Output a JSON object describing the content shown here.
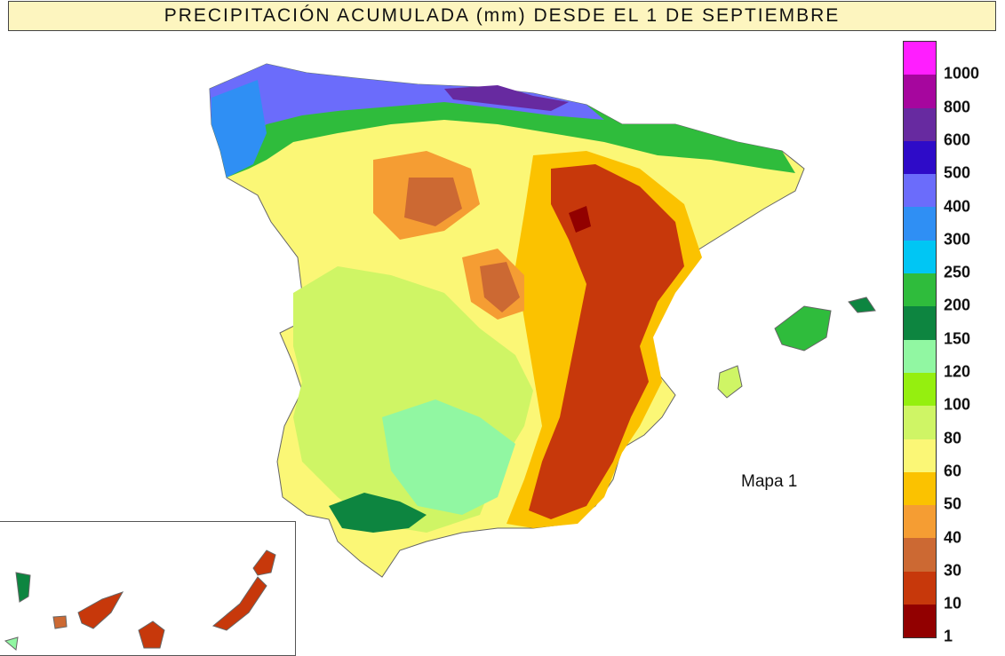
{
  "title": "PRECIPITACIÓN ACUMULADA (mm) DESDE EL 1 DE SEPTIEMBRE",
  "map_label": "Mapa 1",
  "legend": {
    "bins": [
      {
        "label": "1000",
        "color": "#ff1eff"
      },
      {
        "label": "800",
        "color": "#a6069e"
      },
      {
        "label": "600",
        "color": "#672aa0"
      },
      {
        "label": "500",
        "color": "#2e0bc8"
      },
      {
        "label": "400",
        "color": "#6b6cfb"
      },
      {
        "label": "300",
        "color": "#2f8ff4"
      },
      {
        "label": "250",
        "color": "#00c6f4"
      },
      {
        "label": "200",
        "color": "#2fbc3c"
      },
      {
        "label": "150",
        "color": "#0d8540"
      },
      {
        "label": "120",
        "color": "#91f7a2"
      },
      {
        "label": "100",
        "color": "#95ef0f"
      },
      {
        "label": "80",
        "color": "#cff565"
      },
      {
        "label": "60",
        "color": "#fbf776"
      },
      {
        "label": "50",
        "color": "#fbc200"
      },
      {
        "label": "40",
        "color": "#f59d33"
      },
      {
        "label": "30",
        "color": "#cc6933"
      },
      {
        "label": "10",
        "color": "#c7380b"
      },
      {
        "label": "1",
        "color": "#920000"
      }
    ]
  }
}
